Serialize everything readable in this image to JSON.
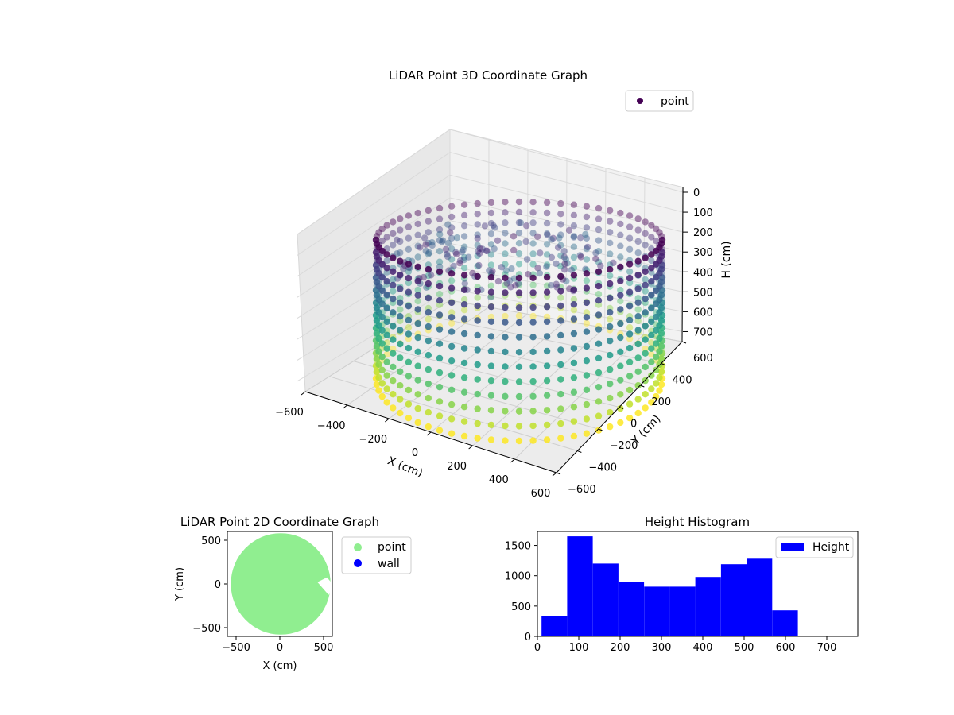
{
  "chart_data": [
    {
      "type": "scatter",
      "projection": "3d",
      "title": "LiDAR Point 3D Coordinate Graph",
      "xlabel": "X (cm)",
      "ylabel": "Y (cm)",
      "zlabel": "H (cm)",
      "xlim": [
        -600,
        600
      ],
      "ylim": [
        -600,
        600
      ],
      "zlim": [
        750,
        0
      ],
      "x_ticks": [
        -600,
        -400,
        -200,
        0,
        200,
        400,
        600
      ],
      "y_ticks": [
        -600,
        -400,
        -200,
        0,
        200,
        400,
        600
      ],
      "z_ticks": [
        0,
        100,
        200,
        300,
        400,
        500,
        600,
        700
      ],
      "series": [
        {
          "name": "point",
          "color": "#440154",
          "colormap": "viridis"
        }
      ],
      "legend_position": "top-right",
      "grid": true
    },
    {
      "type": "scatter",
      "title": "LiDAR Point 2D Coordinate Graph",
      "xlabel": "X (cm)",
      "ylabel": "Y (cm)",
      "xlim": [
        -600,
        600
      ],
      "ylim": [
        -600,
        600
      ],
      "x_ticks": [
        -500,
        0,
        500
      ],
      "y_ticks": [
        -500,
        0,
        500
      ],
      "series": [
        {
          "name": "point",
          "color": "#90ee90"
        },
        {
          "name": "wall",
          "color": "#0000ff"
        }
      ],
      "legend_position": "outside-right"
    },
    {
      "type": "bar",
      "subtype": "histogram",
      "title": "Height Histogram",
      "bin_edges": [
        10,
        72,
        134,
        196,
        258,
        320,
        382,
        444,
        506,
        568,
        630
      ],
      "values": [
        340,
        1650,
        1200,
        900,
        820,
        820,
        980,
        1190,
        1280,
        430
      ],
      "xlim": [
        0,
        775
      ],
      "ylim": [
        0,
        1730
      ],
      "x_ticks": [
        0,
        100,
        200,
        300,
        400,
        500,
        600,
        700
      ],
      "y_ticks": [
        0,
        500,
        1000,
        1500
      ],
      "series": [
        {
          "name": "Height",
          "color": "#0000ff"
        }
      ],
      "legend_position": "top-right"
    }
  ]
}
